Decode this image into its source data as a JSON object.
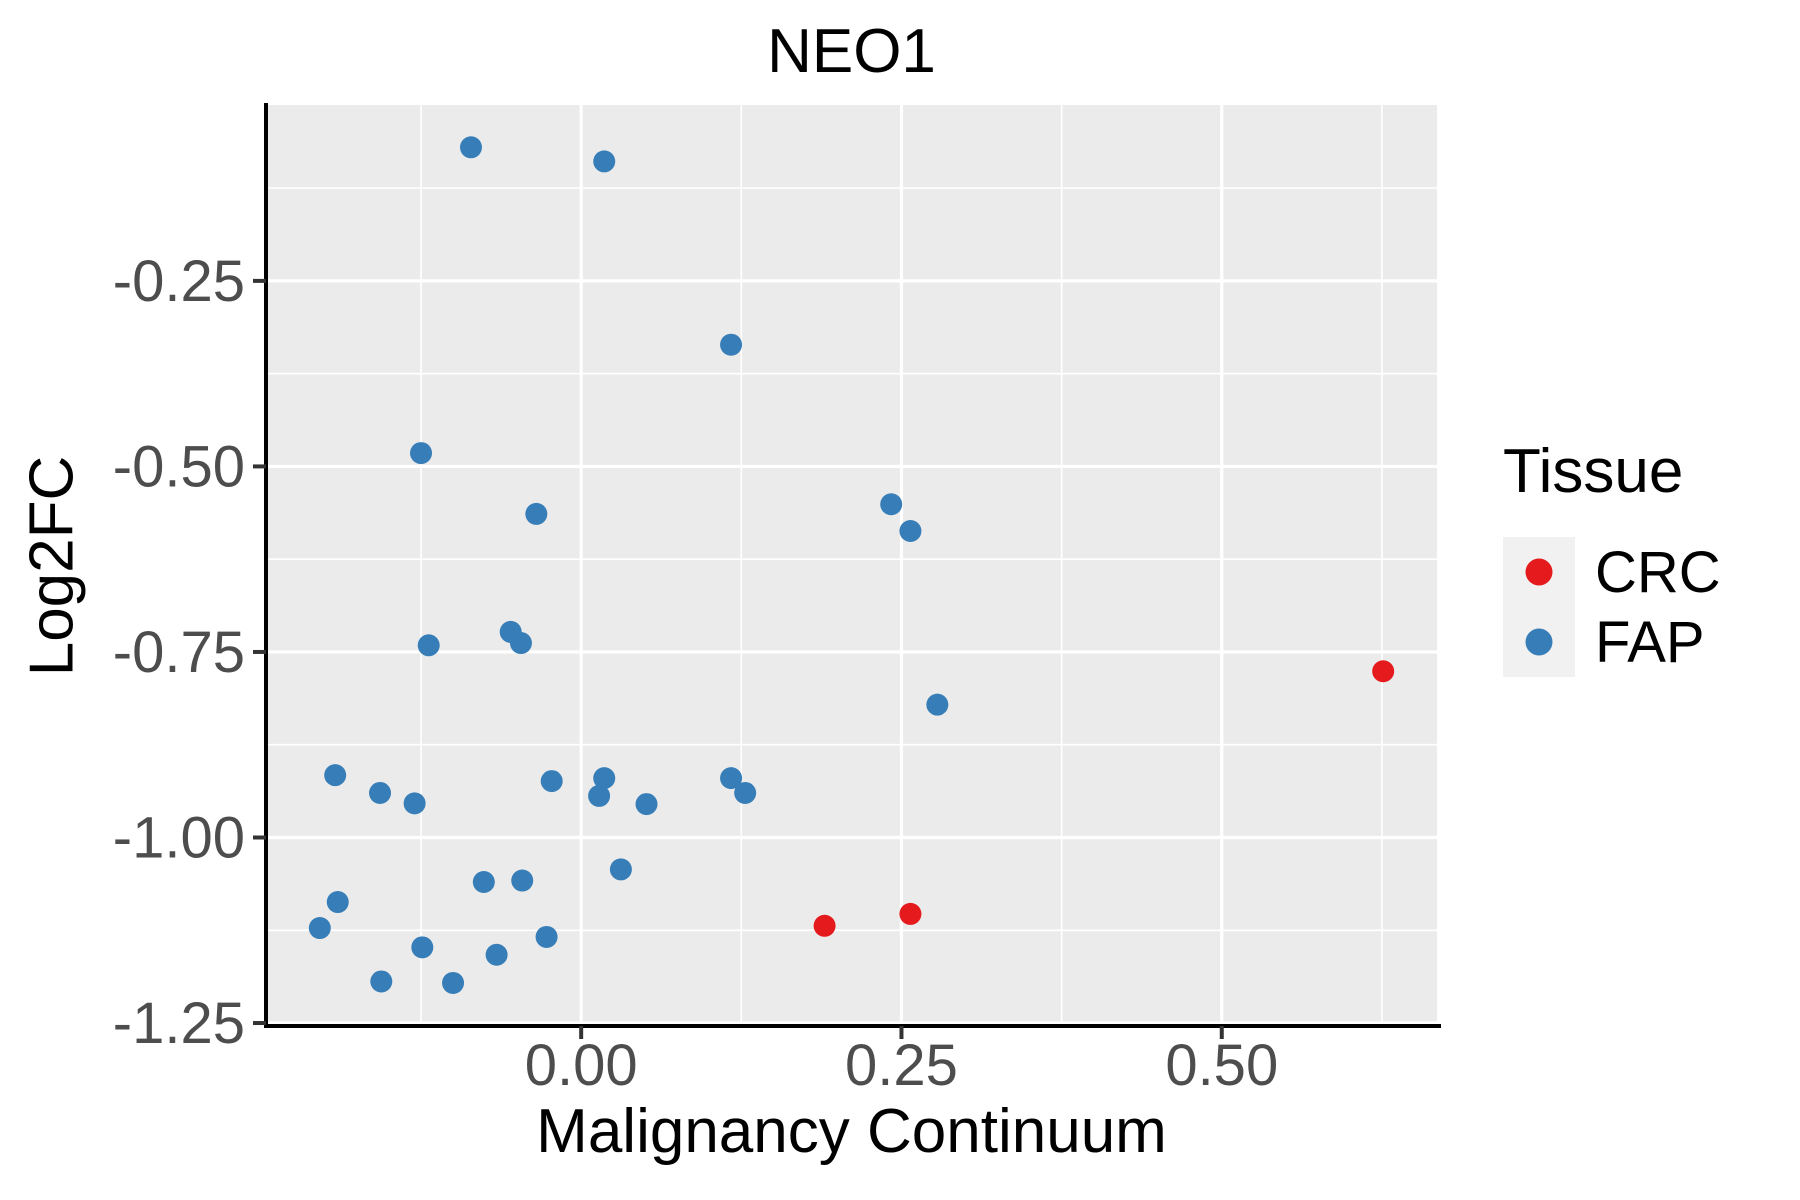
{
  "title": "NEO1",
  "axes": {
    "x_label": "Malignancy Continuum",
    "y_label": "Log2FC"
  },
  "legend": {
    "title": "Tissue",
    "items": [
      {
        "label": "CRC",
        "color": "#E41A1C"
      },
      {
        "label": "FAP",
        "color": "#377EB8"
      }
    ]
  },
  "colors": {
    "panel_background": "#EBEBEB",
    "grid_major": "#FFFFFF",
    "grid_minor": "#FFFFFF",
    "axis_line": "#000000",
    "tick_mark": "#333333",
    "tick_label": "#4D4D4D",
    "crc": "#E41A1C",
    "fap": "#377EB8"
  },
  "chart_data": {
    "type": "scatter",
    "title": "NEO1",
    "xlabel": "Malignancy Continuum",
    "ylabel": "Log2FC",
    "xlim": [
      -0.246,
      0.668
    ],
    "ylim": [
      -1.254,
      -0.013
    ],
    "grid": true,
    "legend_position": "right",
    "x_ticks": [
      0.0,
      0.25,
      0.5
    ],
    "x_tick_labels": [
      "0.00",
      "0.25",
      "0.50"
    ],
    "x_minor_ticks": [
      -0.125,
      0.125,
      0.375,
      0.625
    ],
    "y_ticks": [
      -0.25,
      -0.5,
      -0.75,
      -1.0,
      -1.25
    ],
    "y_tick_labels": [
      "-0.25",
      "-0.50",
      "-0.75",
      "-1.00",
      "-1.25"
    ],
    "y_minor_ticks": [
      -0.125,
      -0.375,
      -0.625,
      -0.875,
      -1.125
    ],
    "series": [
      {
        "name": "FAP",
        "color": "#377EB8",
        "points": [
          [
            -0.086,
            -0.07
          ],
          [
            0.018,
            -0.089
          ],
          [
            0.117,
            -0.336
          ],
          [
            -0.125,
            -0.482
          ],
          [
            -0.035,
            -0.564
          ],
          [
            0.242,
            -0.551
          ],
          [
            0.257,
            -0.587
          ],
          [
            -0.119,
            -0.741
          ],
          [
            -0.055,
            -0.723
          ],
          [
            -0.047,
            -0.738
          ],
          [
            0.278,
            -0.821
          ],
          [
            -0.192,
            -0.916
          ],
          [
            -0.157,
            -0.94
          ],
          [
            -0.13,
            -0.954
          ],
          [
            -0.023,
            -0.924
          ],
          [
            0.018,
            -0.92
          ],
          [
            0.014,
            -0.944
          ],
          [
            0.051,
            -0.955
          ],
          [
            0.117,
            -0.92
          ],
          [
            0.128,
            -0.94
          ],
          [
            0.031,
            -1.043
          ],
          [
            -0.076,
            -1.06
          ],
          [
            -0.046,
            -1.058
          ],
          [
            -0.19,
            -1.087
          ],
          [
            -0.204,
            -1.122
          ],
          [
            -0.027,
            -1.134
          ],
          [
            -0.124,
            -1.148
          ],
          [
            -0.066,
            -1.158
          ],
          [
            -0.156,
            -1.194
          ],
          [
            -0.1,
            -1.196
          ]
        ]
      },
      {
        "name": "CRC",
        "color": "#E41A1C",
        "points": [
          [
            0.626,
            -0.776
          ],
          [
            0.19,
            -1.119
          ],
          [
            0.257,
            -1.103
          ]
        ]
      }
    ]
  }
}
